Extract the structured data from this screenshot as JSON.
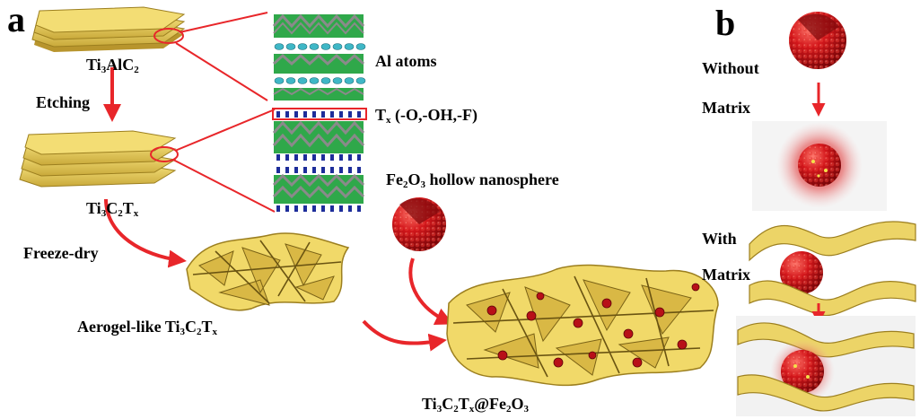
{
  "panels": {
    "a": "a",
    "b": "b"
  },
  "labels": {
    "ti3alc2": {
      "parts": [
        [
          "Ti",
          ""
        ],
        [
          "3",
          "sub"
        ],
        [
          "AlC",
          ""
        ],
        [
          "2",
          "sub"
        ]
      ]
    },
    "etching": "Etching",
    "ti3c2tx": {
      "parts": [
        [
          "Ti",
          ""
        ],
        [
          "3",
          "sub"
        ],
        [
          "C",
          ""
        ],
        [
          "2",
          "sub"
        ],
        [
          "T",
          ""
        ],
        [
          "x",
          "sub"
        ]
      ]
    },
    "freeze_dry": "Freeze-dry",
    "aerogel": {
      "parts": [
        [
          "Aerogel-like Ti",
          ""
        ],
        [
          "3",
          "sub"
        ],
        [
          "C",
          ""
        ],
        [
          "2",
          "sub"
        ],
        [
          "T",
          ""
        ],
        [
          "x",
          "sub"
        ]
      ]
    },
    "al_atoms": "Al atoms",
    "tx_groups": {
      "parts": [
        [
          "T",
          ""
        ],
        [
          "x",
          "sub"
        ],
        [
          " (-O,-OH,-F)",
          ""
        ]
      ]
    },
    "fe2o3_sphere": {
      "parts": [
        [
          "Fe",
          ""
        ],
        [
          "2",
          "sub"
        ],
        [
          "O",
          ""
        ],
        [
          "3",
          "sub"
        ],
        [
          " hollow nanosphere",
          ""
        ]
      ]
    },
    "composite": {
      "parts": [
        [
          "Ti",
          ""
        ],
        [
          "3",
          "sub"
        ],
        [
          "C",
          ""
        ],
        [
          "2",
          "sub"
        ],
        [
          "T",
          ""
        ],
        [
          "x",
          "sub"
        ],
        [
          "@Fe",
          ""
        ],
        [
          "2",
          "sub"
        ],
        [
          "O",
          ""
        ],
        [
          "3",
          "sub"
        ]
      ]
    },
    "without": "Without",
    "matrix_1": "Matrix",
    "with": "With",
    "matrix_2": "Matrix"
  },
  "colors": {
    "arrow": "#e8262a",
    "mxene_yellow": "#e9cf5c",
    "mxene_dark": "#9c7f1f",
    "sphere_red": "#d3161b",
    "al_cyan": "#3fb7c6",
    "ti_green": "#2fa84a",
    "c_gray": "#8a8a8a",
    "tx_blue": "#1d2d9a"
  }
}
